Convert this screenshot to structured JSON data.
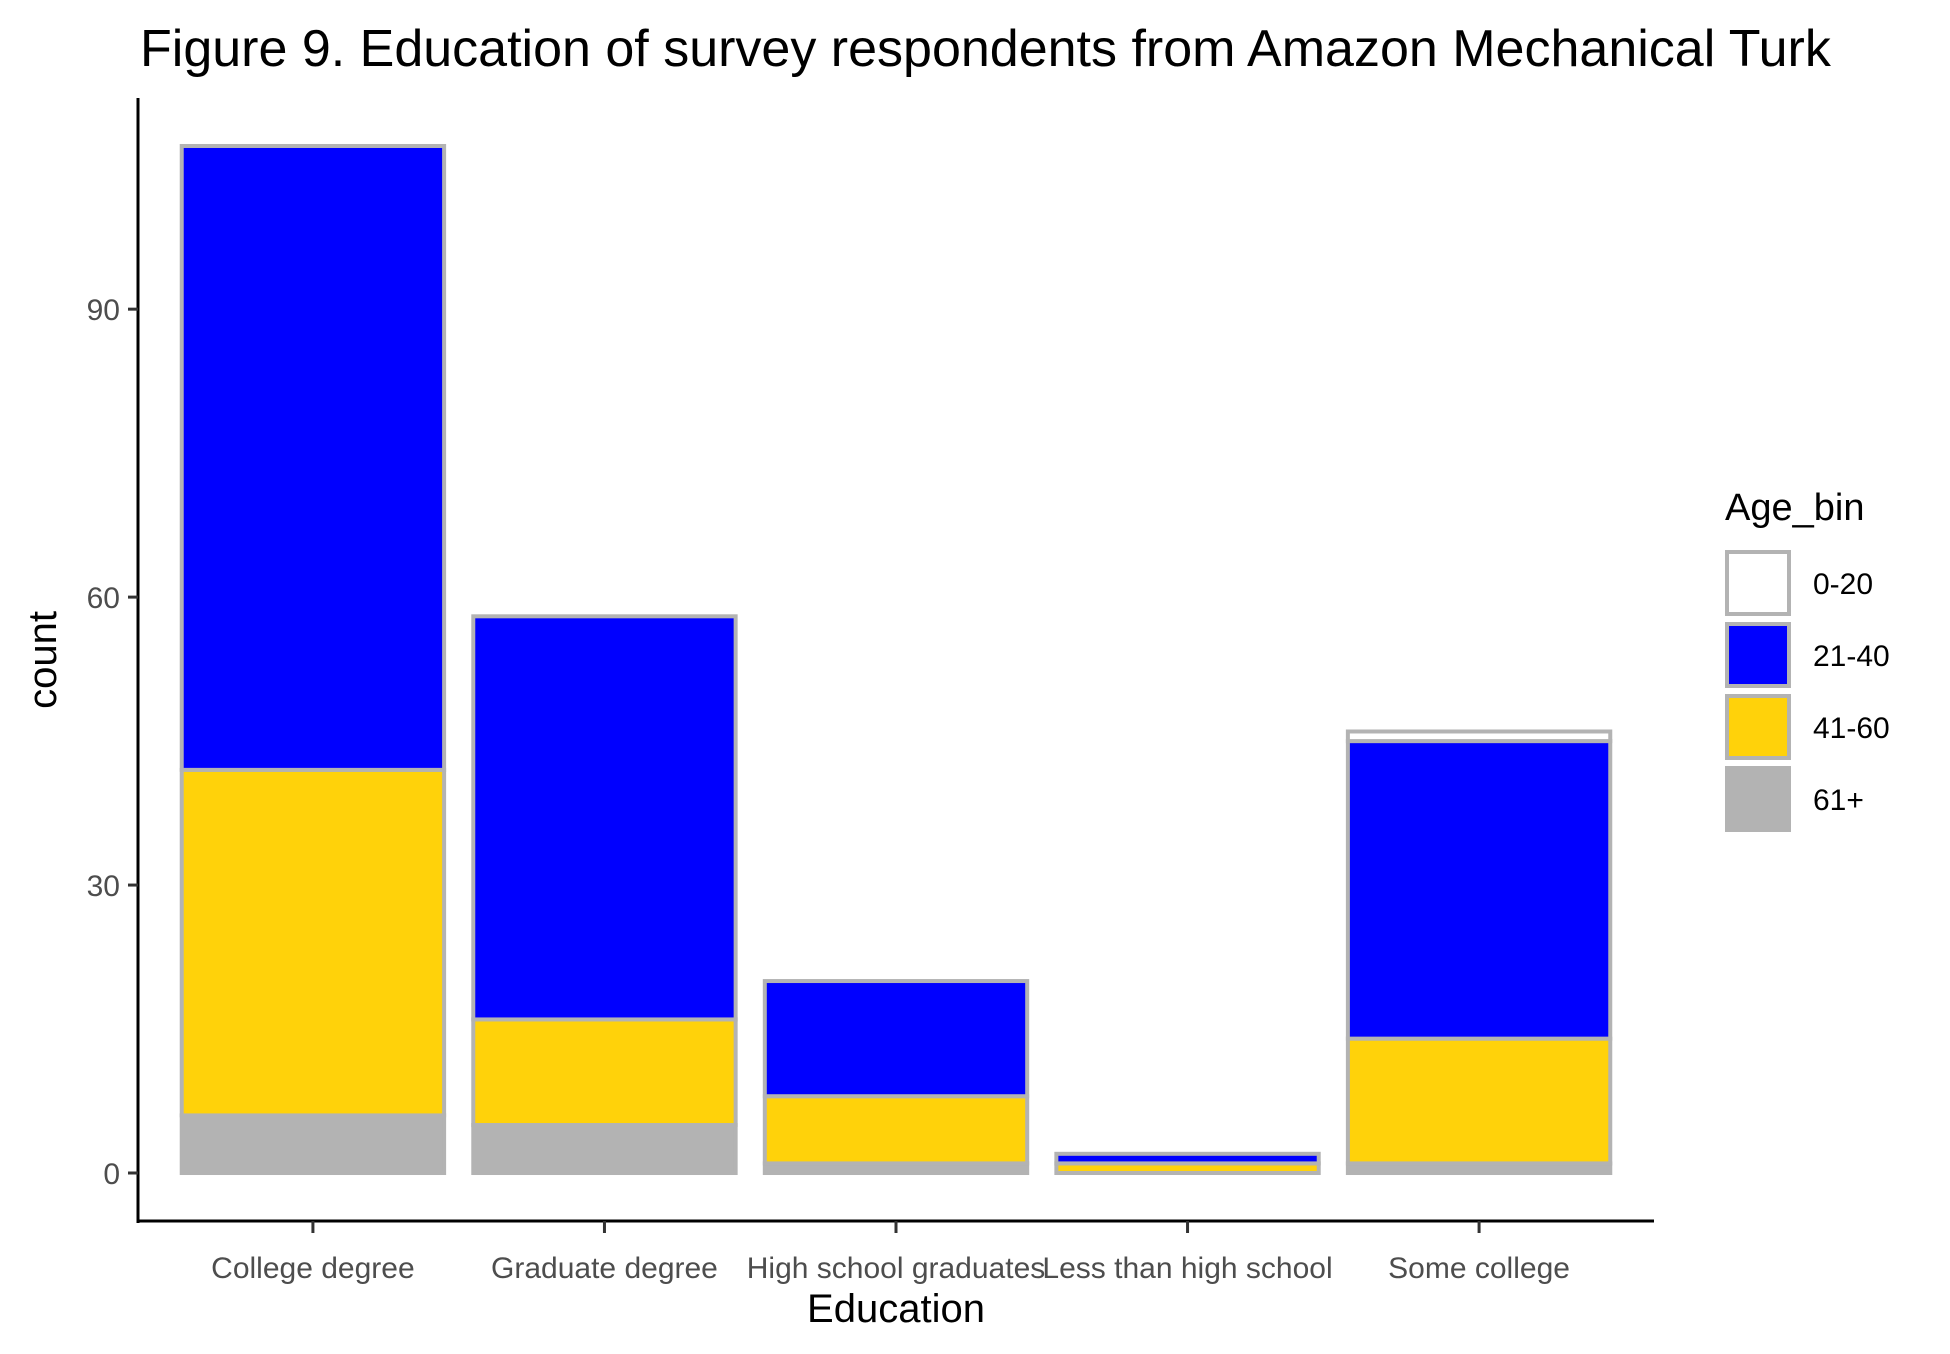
{
  "chart_data": {
    "type": "bar",
    "stacked": true,
    "title": "Figure 9. Education of survey respondents from Amazon Mechanical Turk",
    "xlabel": "Education",
    "ylabel": "count",
    "categories": [
      "College degree",
      "Graduate degree",
      "High school graduates",
      "Less than high school",
      "Some college"
    ],
    "ylim": [
      -5,
      112
    ],
    "yticks": [
      0,
      30,
      60,
      90
    ],
    "grid": false,
    "bar_outline_color": "#b3b3b3",
    "legend": {
      "title": "Age_bin",
      "position": "right"
    },
    "series": [
      {
        "name": "61+",
        "color": "#b3b3b3",
        "values": [
          6,
          5,
          1,
          0,
          1
        ]
      },
      {
        "name": "41-60",
        "color": "#ffd20a",
        "values": [
          36,
          11,
          7,
          1,
          13
        ]
      },
      {
        "name": "21-40",
        "color": "#0000ff",
        "values": [
          65,
          42,
          12,
          1,
          31
        ]
      },
      {
        "name": "0-20",
        "color": "#ffffff",
        "values": [
          0,
          0,
          0,
          0,
          1
        ]
      }
    ],
    "legend_order": [
      "0-20",
      "21-40",
      "41-60",
      "61+"
    ]
  }
}
